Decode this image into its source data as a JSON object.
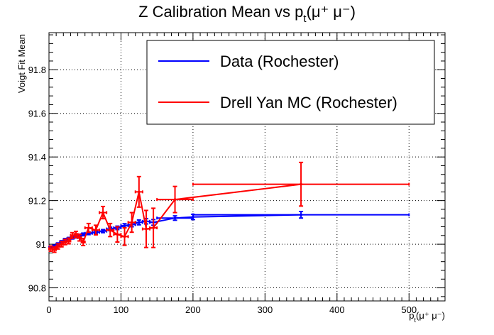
{
  "chart_data": {
    "type": "scatter",
    "title": "Z Calibration Mean vs  p_t(μ⁺ μ⁻)",
    "title_parts": {
      "main": "Z Calibration Mean vs  p",
      "sub": "t",
      "tail": "(μ⁺ μ⁻)"
    },
    "xlabel_parts": {
      "main": "p",
      "sub": "t",
      "tail": "(μ⁺ μ⁻)"
    },
    "xlabel": "p_t(μ⁺ μ⁻)",
    "ylabel": "Voigt Fit Mean",
    "xlim": [
      0,
      550
    ],
    "ylim": [
      90.74,
      91.97
    ],
    "x_ticks": [
      0,
      100,
      200,
      300,
      400,
      500
    ],
    "y_ticks": [
      90.8,
      91.0,
      91.2,
      91.4,
      91.6,
      91.8
    ],
    "y_tick_labels": [
      "90.8",
      "91",
      "91.2",
      "91.4",
      "91.6",
      "91.8"
    ],
    "grid": true,
    "legend_position": "top-right",
    "series": [
      {
        "name": "Data (Rochester)",
        "color": "#0000ff",
        "points": [
          {
            "x": 2.5,
            "y": 90.985,
            "xerr": 2.5,
            "yerr": 0.006
          },
          {
            "x": 7.5,
            "y": 90.99,
            "xerr": 2.5,
            "yerr": 0.006
          },
          {
            "x": 12.5,
            "y": 91.0,
            "xerr": 2.5,
            "yerr": 0.006
          },
          {
            "x": 17.5,
            "y": 91.01,
            "xerr": 2.5,
            "yerr": 0.006
          },
          {
            "x": 22.5,
            "y": 91.02,
            "xerr": 2.5,
            "yerr": 0.006
          },
          {
            "x": 27.5,
            "y": 91.025,
            "xerr": 2.5,
            "yerr": 0.006
          },
          {
            "x": 32.5,
            "y": 91.03,
            "xerr": 2.5,
            "yerr": 0.006
          },
          {
            "x": 37.5,
            "y": 91.035,
            "xerr": 2.5,
            "yerr": 0.006
          },
          {
            "x": 42.5,
            "y": 91.04,
            "xerr": 2.5,
            "yerr": 0.006
          },
          {
            "x": 47.5,
            "y": 91.045,
            "xerr": 2.5,
            "yerr": 0.006
          },
          {
            "x": 55,
            "y": 91.05,
            "xerr": 5,
            "yerr": 0.006
          },
          {
            "x": 65,
            "y": 91.055,
            "xerr": 5,
            "yerr": 0.007
          },
          {
            "x": 75,
            "y": 91.06,
            "xerr": 5,
            "yerr": 0.007
          },
          {
            "x": 85,
            "y": 91.07,
            "xerr": 5,
            "yerr": 0.008
          },
          {
            "x": 95,
            "y": 91.075,
            "xerr": 5,
            "yerr": 0.008
          },
          {
            "x": 105,
            "y": 91.085,
            "xerr": 5,
            "yerr": 0.009
          },
          {
            "x": 115,
            "y": 91.09,
            "xerr": 5,
            "yerr": 0.01
          },
          {
            "x": 125,
            "y": 91.1,
            "xerr": 5,
            "yerr": 0.011
          },
          {
            "x": 135,
            "y": 91.105,
            "xerr": 5,
            "yerr": 0.012
          },
          {
            "x": 145,
            "y": 91.1,
            "xerr": 5,
            "yerr": 0.013
          },
          {
            "x": 175,
            "y": 91.12,
            "xerr": 25,
            "yerr": 0.01
          },
          {
            "x": 200,
            "y": 91.125,
            "xerr": 0,
            "yerr": 0.012
          },
          {
            "x": 350,
            "y": 91.135,
            "xerr": 150,
            "yerr": 0.015
          }
        ]
      },
      {
        "name": "Drell Yan MC (Rochester)",
        "color": "#ff0000",
        "points": [
          {
            "x": 2.5,
            "y": 90.98,
            "xerr": 2.5,
            "yerr": 0.012
          },
          {
            "x": 7.5,
            "y": 90.975,
            "xerr": 2.5,
            "yerr": 0.012
          },
          {
            "x": 12.5,
            "y": 90.99,
            "xerr": 2.5,
            "yerr": 0.012
          },
          {
            "x": 17.5,
            "y": 91.0,
            "xerr": 2.5,
            "yerr": 0.012
          },
          {
            "x": 22.5,
            "y": 91.01,
            "xerr": 2.5,
            "yerr": 0.012
          },
          {
            "x": 27.5,
            "y": 91.015,
            "xerr": 2.5,
            "yerr": 0.013
          },
          {
            "x": 32.5,
            "y": 91.04,
            "xerr": 2.5,
            "yerr": 0.013
          },
          {
            "x": 37.5,
            "y": 91.045,
            "xerr": 2.5,
            "yerr": 0.014
          },
          {
            "x": 42.5,
            "y": 91.03,
            "xerr": 2.5,
            "yerr": 0.015
          },
          {
            "x": 47.5,
            "y": 91.01,
            "xerr": 2.5,
            "yerr": 0.016
          },
          {
            "x": 55,
            "y": 91.075,
            "xerr": 5,
            "yerr": 0.02
          },
          {
            "x": 65,
            "y": 91.065,
            "xerr": 5,
            "yerr": 0.022
          },
          {
            "x": 75,
            "y": 91.145,
            "xerr": 5,
            "yerr": 0.028
          },
          {
            "x": 85,
            "y": 91.065,
            "xerr": 5,
            "yerr": 0.03
          },
          {
            "x": 95,
            "y": 91.045,
            "xerr": 5,
            "yerr": 0.035
          },
          {
            "x": 105,
            "y": 91.035,
            "xerr": 5,
            "yerr": 0.04
          },
          {
            "x": 115,
            "y": 91.1,
            "xerr": 5,
            "yerr": 0.045
          },
          {
            "x": 125,
            "y": 91.24,
            "xerr": 5,
            "yerr": 0.07
          },
          {
            "x": 135,
            "y": 91.07,
            "xerr": 5,
            "yerr": 0.085
          },
          {
            "x": 145,
            "y": 91.075,
            "xerr": 5,
            "yerr": 0.09
          },
          {
            "x": 175,
            "y": 91.205,
            "xerr": 25,
            "yerr": 0.06
          },
          {
            "x": 350,
            "y": 91.275,
            "xerr": 150,
            "yerr": 0.1
          }
        ]
      }
    ]
  }
}
